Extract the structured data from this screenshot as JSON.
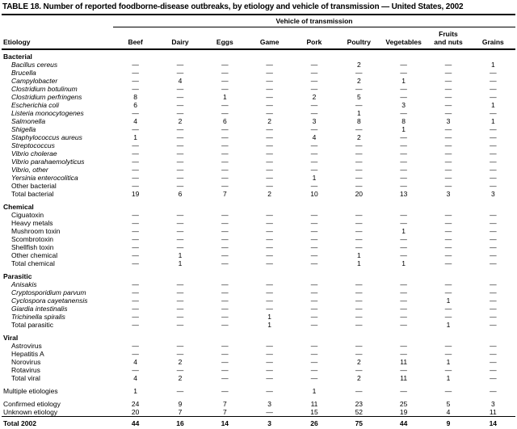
{
  "colors": {
    "background": "#ffffff",
    "text": "#000000",
    "rule": "#000000"
  },
  "title": "TABLE 18. Number of reported foodborne-disease outbreaks, by etiology and vehicle of transmission — United States, 2002",
  "table": {
    "vehicle_header": "Vehicle of transmission",
    "etiology_header": "Etiology",
    "columns": [
      {
        "lines": [
          "Beef"
        ]
      },
      {
        "lines": [
          "Dairy"
        ]
      },
      {
        "lines": [
          "Eggs"
        ]
      },
      {
        "lines": [
          "Game"
        ]
      },
      {
        "lines": [
          "Pork"
        ]
      },
      {
        "lines": [
          "Poultry"
        ]
      },
      {
        "lines": [
          "Vegetables"
        ]
      },
      {
        "lines": [
          "Fruits",
          "and nuts"
        ]
      },
      {
        "lines": [
          "Grains"
        ]
      }
    ],
    "sections": [
      {
        "name": "Bacterial",
        "rows": [
          {
            "label": "Bacillus cereus",
            "italic": true,
            "values": [
              "—",
              "—",
              "—",
              "—",
              "—",
              "2",
              "—",
              "—",
              "1"
            ]
          },
          {
            "label": "Brucella",
            "italic": true,
            "values": [
              "—",
              "—",
              "—",
              "—",
              "—",
              "—",
              "—",
              "—",
              "—"
            ]
          },
          {
            "label": "Campylobacter",
            "italic": true,
            "values": [
              "—",
              "4",
              "—",
              "—",
              "—",
              "2",
              "1",
              "—",
              "—"
            ]
          },
          {
            "label": "Clostridium botulinum",
            "italic": true,
            "values": [
              "—",
              "—",
              "—",
              "—",
              "—",
              "—",
              "—",
              "—",
              "—"
            ]
          },
          {
            "label": "Clostridium perfringens",
            "italic": true,
            "values": [
              "8",
              "—",
              "1",
              "—",
              "2",
              "5",
              "—",
              "—",
              "—"
            ]
          },
          {
            "label": "Escherichia coli",
            "italic": true,
            "values": [
              "6",
              "—",
              "—",
              "—",
              "—",
              "—",
              "3",
              "—",
              "1"
            ]
          },
          {
            "label": "Listeria monocytogenes",
            "italic": true,
            "values": [
              "—",
              "—",
              "—",
              "—",
              "—",
              "1",
              "—",
              "—",
              "—"
            ]
          },
          {
            "label": "Salmonella",
            "italic": true,
            "values": [
              "4",
              "2",
              "6",
              "2",
              "3",
              "8",
              "8",
              "3",
              "1"
            ]
          },
          {
            "label": "Shigella",
            "italic": true,
            "values": [
              "—",
              "—",
              "—",
              "—",
              "—",
              "—",
              "1",
              "—",
              "—"
            ]
          },
          {
            "label": "Staphylococcus aureus",
            "italic": true,
            "values": [
              "1",
              "—",
              "—",
              "—",
              "4",
              "2",
              "—",
              "—",
              "—"
            ]
          },
          {
            "label": "Streptococcus",
            "italic": true,
            "values": [
              "—",
              "—",
              "—",
              "—",
              "—",
              "—",
              "—",
              "—",
              "—"
            ]
          },
          {
            "label": "Vibrio cholerae",
            "italic": true,
            "values": [
              "—",
              "—",
              "—",
              "—",
              "—",
              "—",
              "—",
              "—",
              "—"
            ]
          },
          {
            "label": "Vibrio parahaemolyticus",
            "italic": true,
            "values": [
              "—",
              "—",
              "—",
              "—",
              "—",
              "—",
              "—",
              "—",
              "—"
            ]
          },
          {
            "label": "Vibrio, other",
            "italic": true,
            "values": [
              "—",
              "—",
              "—",
              "—",
              "—",
              "—",
              "—",
              "—",
              "—"
            ]
          },
          {
            "label": "Yersinia enterocolitica",
            "italic": true,
            "values": [
              "—",
              "—",
              "—",
              "—",
              "1",
              "—",
              "—",
              "—",
              "—"
            ]
          },
          {
            "label": "Other bacterial",
            "italic": false,
            "values": [
              "—",
              "—",
              "—",
              "—",
              "—",
              "—",
              "—",
              "—",
              "—"
            ]
          },
          {
            "label": "Total bacterial",
            "bold": true,
            "values": [
              "19",
              "6",
              "7",
              "2",
              "10",
              "20",
              "13",
              "3",
              "3"
            ]
          }
        ]
      },
      {
        "name": "Chemical",
        "rows": [
          {
            "label": "Ciguatoxin",
            "values": [
              "—",
              "—",
              "—",
              "—",
              "—",
              "—",
              "—",
              "—",
              "—"
            ]
          },
          {
            "label": "Heavy metals",
            "values": [
              "—",
              "—",
              "—",
              "—",
              "—",
              "—",
              "—",
              "—",
              "—"
            ]
          },
          {
            "label": "Mushroom toxin",
            "values": [
              "—",
              "—",
              "—",
              "—",
              "—",
              "—",
              "1",
              "—",
              "—"
            ]
          },
          {
            "label": "Scombrotoxin",
            "values": [
              "—",
              "—",
              "—",
              "—",
              "—",
              "—",
              "—",
              "—",
              "—"
            ]
          },
          {
            "label": "Shellfish toxin",
            "values": [
              "—",
              "—",
              "—",
              "—",
              "—",
              "—",
              "—",
              "—",
              "—"
            ]
          },
          {
            "label": "Other chemical",
            "values": [
              "—",
              "1",
              "—",
              "—",
              "—",
              "1",
              "—",
              "—",
              "—"
            ]
          },
          {
            "label": "Total chemical",
            "bold": true,
            "values": [
              "—",
              "1",
              "—",
              "—",
              "—",
              "1",
              "1",
              "—",
              "—"
            ]
          }
        ]
      },
      {
        "name": "Parasitic",
        "rows": [
          {
            "label": "Anisakis",
            "italic": true,
            "values": [
              "—",
              "—",
              "—",
              "—",
              "—",
              "—",
              "—",
              "—",
              "—"
            ]
          },
          {
            "label": "Cryptosporidium parvum",
            "italic": true,
            "values": [
              "—",
              "—",
              "—",
              "—",
              "—",
              "—",
              "—",
              "—",
              "—"
            ]
          },
          {
            "label": "Cyclospora cayetanensis",
            "italic": true,
            "values": [
              "—",
              "—",
              "—",
              "—",
              "—",
              "—",
              "—",
              "1",
              "—"
            ]
          },
          {
            "label": "Giardia intestinalis",
            "italic": true,
            "values": [
              "—",
              "—",
              "—",
              "—",
              "—",
              "—",
              "—",
              "—",
              "—"
            ]
          },
          {
            "label": "Trichinella spiralis",
            "italic": true,
            "values": [
              "—",
              "—",
              "—",
              "1",
              "—",
              "—",
              "—",
              "—",
              "—"
            ]
          },
          {
            "label": "Total parasitic",
            "bold": true,
            "values": [
              "—",
              "—",
              "—",
              "1",
              "—",
              "—",
              "—",
              "1",
              "—"
            ]
          }
        ]
      },
      {
        "name": "Viral",
        "rows": [
          {
            "label": "Astrovirus",
            "values": [
              "—",
              "—",
              "—",
              "—",
              "—",
              "—",
              "—",
              "—",
              "—"
            ]
          },
          {
            "label": "Hepatitis A",
            "values": [
              "—",
              "—",
              "—",
              "—",
              "—",
              "—",
              "—",
              "—",
              "—"
            ]
          },
          {
            "label": "Norovirus",
            "values": [
              "4",
              "2",
              "—",
              "—",
              "—",
              "2",
              "11",
              "1",
              "—"
            ]
          },
          {
            "label": "Rotavirus",
            "values": [
              "—",
              "—",
              "—",
              "—",
              "—",
              "—",
              "—",
              "—",
              "—"
            ]
          },
          {
            "label": "Total viral",
            "bold": true,
            "values": [
              "4",
              "2",
              "—",
              "—",
              "—",
              "2",
              "11",
              "1",
              "—"
            ]
          }
        ]
      }
    ],
    "summary": {
      "rows": [
        {
          "label": "Multiple etiologies",
          "bold": true,
          "values": [
            "1",
            "—",
            "—",
            "—",
            "1",
            "—",
            "—",
            "—",
            "—"
          ]
        },
        {
          "label": "Confirmed etiology",
          "bold": true,
          "values": [
            "24",
            "9",
            "7",
            "3",
            "11",
            "23",
            "25",
            "5",
            "3"
          ]
        },
        {
          "label": "Unknown etiology",
          "bold": true,
          "values": [
            "20",
            "7",
            "7",
            "—",
            "15",
            "52",
            "19",
            "4",
            "11"
          ]
        }
      ],
      "total": {
        "label": "Total 2002",
        "bold": true,
        "values": [
          "44",
          "16",
          "14",
          "3",
          "26",
          "75",
          "44",
          "9",
          "14"
        ]
      }
    }
  }
}
